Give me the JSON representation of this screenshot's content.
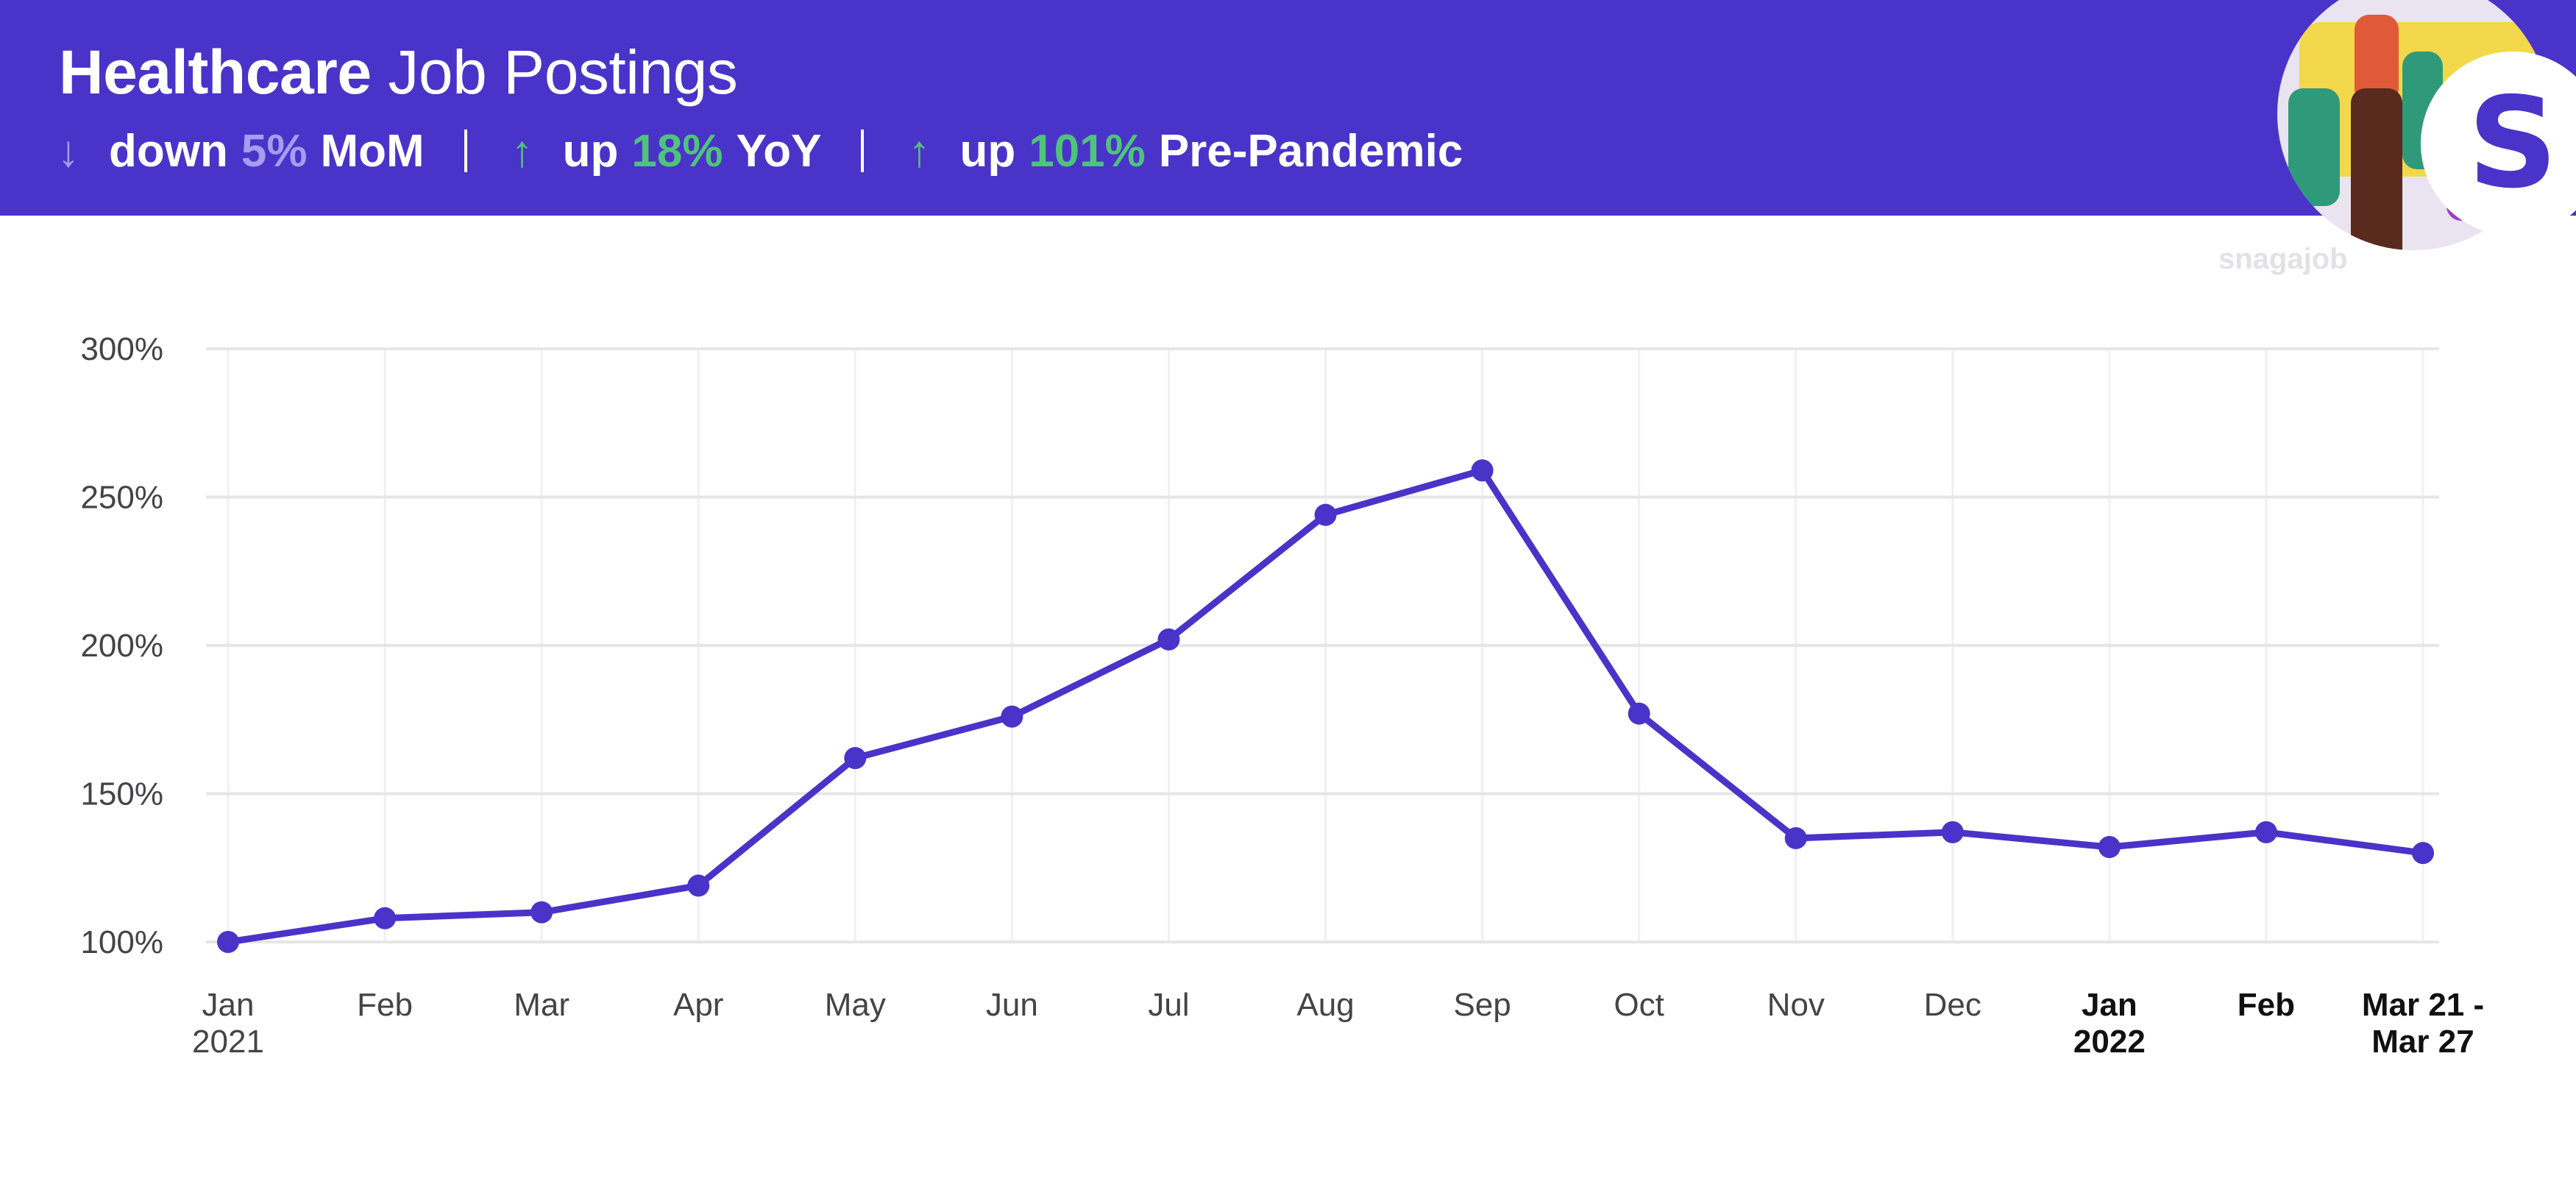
{
  "header": {
    "title_bold": "Healthcare",
    "title_rest": "Job Postings",
    "stats": [
      {
        "direction": "down",
        "arrow": "↓",
        "word": "down",
        "value": "5%",
        "label": "MoM"
      },
      {
        "direction": "up",
        "arrow": "↑",
        "word": "up",
        "value": "18%",
        "label": "YoY"
      },
      {
        "direction": "up",
        "arrow": "↑",
        "word": "up",
        "value": "101%",
        "label": "Pre-Pandemic"
      }
    ],
    "badge_letter": "S"
  },
  "brand": "snagajob",
  "colors": {
    "banner": "#4a33c8",
    "line": "#4a33c8",
    "up": "#4fc37a",
    "down": "#a89bf0",
    "grid": "#e6e6e6"
  },
  "chart_data": {
    "type": "line",
    "categories": [
      "Jan 2021",
      "Feb",
      "Mar",
      "Apr",
      "May",
      "Jun",
      "Jul",
      "Aug",
      "Sep",
      "Oct",
      "Nov",
      "Dec",
      "Jan 2022",
      "Feb",
      "Mar 21 - Mar 27"
    ],
    "x_tick_lines": [
      [
        "Jan",
        "2021"
      ],
      [
        "Feb"
      ],
      [
        "Mar"
      ],
      [
        "Apr"
      ],
      [
        "May"
      ],
      [
        "Jun"
      ],
      [
        "Jul"
      ],
      [
        "Aug"
      ],
      [
        "Sep"
      ],
      [
        "Oct"
      ],
      [
        "Nov"
      ],
      [
        "Dec"
      ],
      [
        "Jan",
        "2022"
      ],
      [
        "Feb"
      ],
      [
        "Mar 21 -",
        "Mar 27"
      ]
    ],
    "series": [
      {
        "values": [
          100,
          108,
          110,
          119,
          162,
          176,
          202,
          244,
          259,
          177,
          135,
          137,
          132,
          137,
          130
        ]
      }
    ],
    "ylim": [
      100,
      300
    ],
    "y_ticks": [
      100,
      150,
      200,
      250,
      300
    ],
    "y_tick_labels": [
      "100%",
      "150%",
      "200%",
      "250%",
      "300%"
    ],
    "grid": true,
    "title": "",
    "xlabel": "",
    "ylabel": ""
  }
}
